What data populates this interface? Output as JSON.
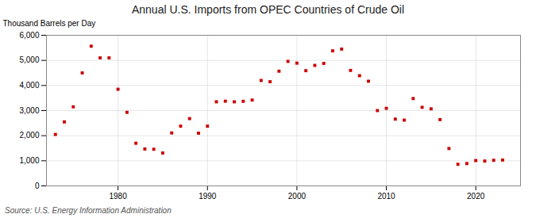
{
  "chart_data": {
    "type": "scatter",
    "title": "Annual U.S. Imports from OPEC Countries of Crude Oil",
    "ylabel": "Thousand Barrels per Day",
    "annotations": [
      "Source: U.S. Energy Information Administration"
    ],
    "x": [
      1973,
      1974,
      1975,
      1976,
      1977,
      1978,
      1979,
      1980,
      1981,
      1982,
      1983,
      1984,
      1985,
      1986,
      1987,
      1988,
      1989,
      1990,
      1991,
      1992,
      1993,
      1994,
      1995,
      1996,
      1997,
      1998,
      1999,
      2000,
      2001,
      2002,
      2003,
      2004,
      2005,
      2006,
      2007,
      2008,
      2009,
      2010,
      2011,
      2012,
      2013,
      2014,
      2015,
      2016,
      2017,
      2018,
      2019,
      2020,
      2021,
      2022,
      2023
    ],
    "values": [
      2050,
      2550,
      3150,
      4500,
      5565,
      5100,
      5100,
      3850,
      2930,
      1700,
      1470,
      1460,
      1310,
      2110,
      2380,
      2680,
      2100,
      2380,
      3350,
      3375,
      3350,
      3370,
      3420,
      4200,
      4150,
      4570,
      4960,
      4890,
      4590,
      4800,
      4880,
      5380,
      5450,
      4600,
      4390,
      4170,
      3000,
      3090,
      2660,
      2620,
      3480,
      3130,
      3070,
      2640,
      1490,
      860,
      890,
      1010,
      990,
      1020,
      1030
    ],
    "color": "#cc0000",
    "marker": "square",
    "xlim": [
      1972,
      2025
    ],
    "xticks": [
      1980,
      1990,
      2000,
      2010,
      2020
    ],
    "ylim": [
      0,
      6000
    ],
    "yticks": [
      0,
      {
        "value": 1000,
        "label": "1,000"
      },
      {
        "value": 2000,
        "label": "2,000"
      },
      {
        "value": 3000,
        "label": "3,000"
      },
      {
        "value": 4000,
        "label": "4,000"
      },
      {
        "value": 5000,
        "label": "5,000"
      },
      {
        "value": 6000,
        "label": "6,000"
      }
    ],
    "grid": true
  }
}
